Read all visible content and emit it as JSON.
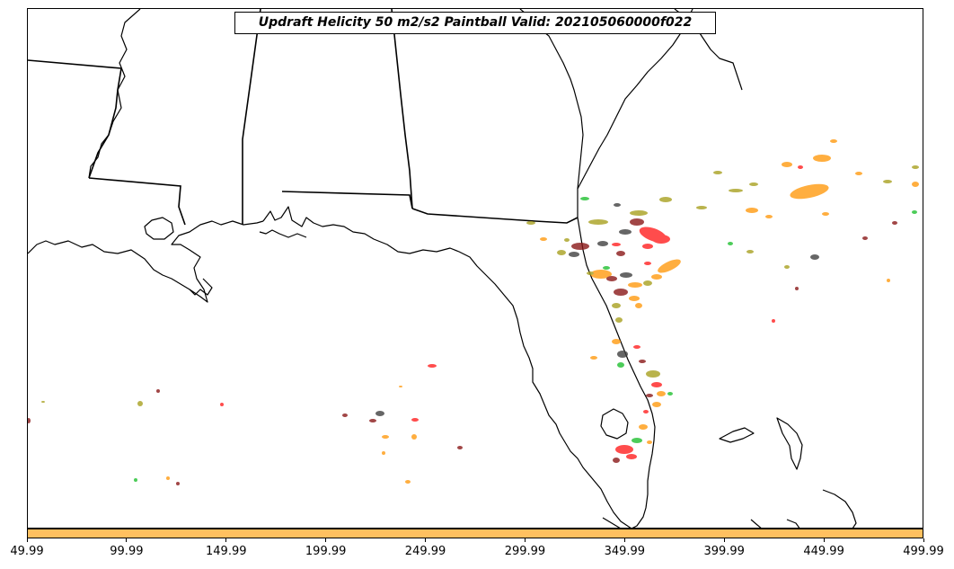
{
  "title": "Updraft Helicity 50 m2/s2 Paintball Valid: 202105060000f022",
  "colors": {
    "colorbar": "#ffc060",
    "coastline": "#000000",
    "orange": "#ff9a10",
    "red": "#ff2020",
    "olive": "#a8a020",
    "dark_red": "#8a1818",
    "green": "#20c030",
    "dark_gray": "#404040"
  },
  "colorbar_ticks": [
    "49.99",
    "99.99",
    "149.99",
    "199.99",
    "249.99",
    "299.99",
    "349.99",
    "399.99",
    "449.99",
    "499.99"
  ],
  "colorbar_range": [
    49.99,
    499.99
  ]
}
